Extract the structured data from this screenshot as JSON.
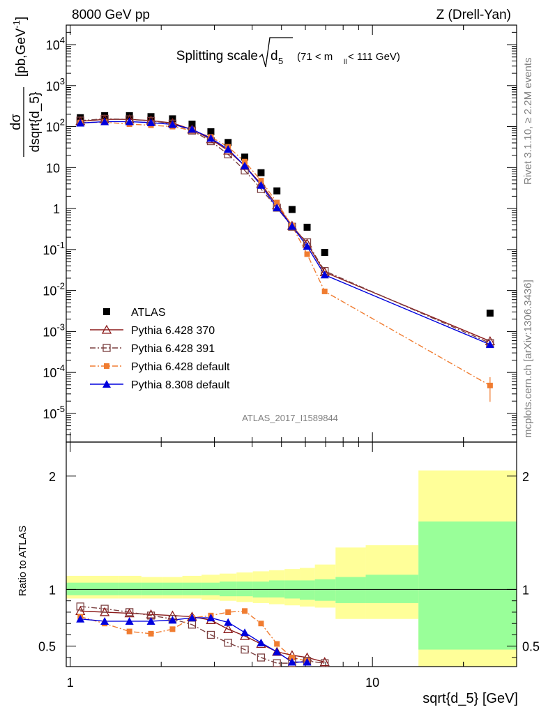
{
  "header": {
    "left": "8000 GeV pp",
    "right": "Z (Drell-Yan)"
  },
  "side": {
    "rivet": "Rivet 3.1.10, ≥ 2.2M events",
    "mcplots": "mcplots.cern.ch [arXiv:1306.3436]"
  },
  "chart_data": {
    "type": "scatter",
    "title_main": "Splitting scale",
    "title_var": "d",
    "title_sub": "5",
    "title_cut_open": "(71 < m",
    "title_cut_sub": "ll",
    "title_cut_close": " < 111 GeV)",
    "ylabel_num": "dσ",
    "ylabel_den": "dsqrt{d_5}",
    "ylabel_units": "[pb,GeV",
    "ylabel_units_exp": "-1",
    "ylabel_units_close": "]",
    "xlabel": "sqrt{d_5} [GeV]",
    "ratio_ylabel": "Ratio to ATLAS",
    "watermark": "ATLAS_2017_I1589844",
    "x_scale": "log",
    "y_scale": "log",
    "xlim": [
      0.97,
      30
    ],
    "ylim": [
      2e-06,
      30000
    ],
    "ratio_ylim": [
      0.32,
      2.3
    ],
    "x_ticks": [
      "1",
      "10"
    ],
    "y_ticks": [
      {
        "v": 10000,
        "base": "10",
        "exp": "4"
      },
      {
        "v": 1000,
        "base": "10",
        "exp": "3"
      },
      {
        "v": 100,
        "base": "10",
        "exp": "2"
      },
      {
        "v": 10,
        "base": "10",
        "exp": ""
      },
      {
        "v": 1,
        "base": "1",
        "exp": ""
      },
      {
        "v": 0.1,
        "base": "10",
        "exp": "-1"
      },
      {
        "v": 0.01,
        "base": "10",
        "exp": "-2"
      },
      {
        "v": 0.001,
        "base": "10",
        "exp": "-3"
      },
      {
        "v": 0.0001,
        "base": "10",
        "exp": "-4"
      },
      {
        "v": 1e-05,
        "base": "10",
        "exp": "-5"
      }
    ],
    "ratio_ticks": [
      "0.5",
      "1",
      "2"
    ],
    "bin_edges": [
      0.97,
      1.19,
      1.44,
      1.72,
      2.02,
      2.35,
      2.72,
      3.12,
      3.55,
      4.02,
      4.55,
      5.12,
      5.75,
      6.45,
      7.55,
      9.5,
      14.2,
      30
    ],
    "x": [
      1.08,
      1.3,
      1.57,
      1.85,
      2.18,
      2.53,
      2.92,
      3.33,
      3.78,
      4.28,
      4.83,
      5.42,
      6.08,
      6.95,
      8.4,
      11.6,
      24.5
    ],
    "series": [
      {
        "name": "ATLAS",
        "marker": "filled-square",
        "color": "#000000",
        "values": [
          165,
          185,
          185,
          175,
          155,
          115,
          75,
          41,
          18,
          7.5,
          2.7,
          0.95,
          0.35,
          0.085,
          0.0028
        ]
      },
      {
        "name": "Pythia 6.428 370",
        "marker": "open-triangle",
        "color": "#8b1a1a",
        "line": "solid",
        "values": [
          135,
          150,
          150,
          140,
          122,
          85,
          49,
          26,
          11,
          4.0,
          1.2,
          0.38,
          0.14,
          0.028,
          0.00058
        ]
      },
      {
        "name": "Pythia 6.428 391",
        "marker": "open-square",
        "color": "#7b4040",
        "line": "dash-dot",
        "values": [
          140,
          155,
          150,
          138,
          118,
          80,
          44,
          21,
          8.5,
          3.0,
          1.05,
          0.36,
          0.15,
          0.03,
          0.00052
        ]
      },
      {
        "name": "Pythia 6.428 default",
        "marker": "filled-square-small",
        "color": "#f07c30",
        "line": "dash-dot",
        "values": [
          125,
          128,
          115,
          108,
          100,
          80,
          56,
          32,
          14,
          4.8,
          1.4,
          0.38,
          0.077,
          0.0095,
          4.8e-05
        ]
      },
      {
        "name": "Pythia 8.308 default",
        "marker": "filled-triangle",
        "color": "#0000dd",
        "line": "solid",
        "values": [
          122,
          132,
          132,
          125,
          113,
          86,
          52,
          28,
          11,
          3.7,
          1.05,
          0.37,
          0.12,
          0.024,
          0.00048
        ]
      }
    ],
    "ratio_x": [
      1.08,
      1.3,
      1.57,
      1.85,
      2.18,
      2.53,
      2.92,
      3.33,
      3.78,
      4.28,
      4.83,
      5.42,
      6.08,
      6.95,
      8.4,
      11.6,
      24.5
    ],
    "ratio_series": [
      {
        "name": "Pythia 6.428 370",
        "values": [
          0.81,
          0.8,
          0.79,
          0.78,
          0.77,
          0.76,
          0.73,
          0.65,
          0.59,
          0.52,
          0.45,
          0.42,
          0.4,
          0.36
        ]
      },
      {
        "name": "Pythia 6.428 391",
        "values": [
          0.85,
          0.83,
          0.8,
          0.77,
          0.74,
          0.69,
          0.6,
          0.53,
          0.47,
          0.4,
          0.35,
          0.35,
          0.37,
          0.35
        ]
      },
      {
        "name": "Pythia 6.428 default",
        "values": [
          0.76,
          0.7,
          0.63,
          0.61,
          0.65,
          0.75,
          0.77,
          0.8,
          0.81,
          0.7,
          0.52,
          0.4,
          0.37
        ]
      },
      {
        "name": "Pythia 8.308 default",
        "values": [
          0.74,
          0.72,
          0.72,
          0.72,
          0.73,
          0.75,
          0.75,
          0.71,
          0.62,
          0.53,
          0.45,
          0.36,
          0.36
        ]
      }
    ],
    "band_inner": [
      [
        0.95,
        1.06
      ],
      [
        0.95,
        1.06
      ],
      [
        0.95,
        1.06
      ],
      [
        0.95,
        1.06
      ],
      [
        0.95,
        1.06
      ],
      [
        0.95,
        1.06
      ],
      [
        0.95,
        1.06
      ],
      [
        0.94,
        1.07
      ],
      [
        0.94,
        1.07
      ],
      [
        0.93,
        1.07
      ],
      [
        0.93,
        1.08
      ],
      [
        0.92,
        1.08
      ],
      [
        0.91,
        1.08
      ],
      [
        0.9,
        1.09
      ],
      [
        0.88,
        1.11
      ],
      [
        0.88,
        1.13
      ],
      [
        0.47,
        1.6
      ]
    ],
    "band_outer": [
      [
        0.92,
        1.12
      ],
      [
        0.92,
        1.12
      ],
      [
        0.92,
        1.12
      ],
      [
        0.92,
        1.11
      ],
      [
        0.92,
        1.11
      ],
      [
        0.92,
        1.12
      ],
      [
        0.91,
        1.13
      ],
      [
        0.9,
        1.14
      ],
      [
        0.89,
        1.15
      ],
      [
        0.88,
        1.16
      ],
      [
        0.87,
        1.17
      ],
      [
        0.86,
        1.18
      ],
      [
        0.85,
        1.19
      ],
      [
        0.84,
        1.22
      ],
      [
        0.74,
        1.37
      ],
      [
        0.74,
        1.39
      ],
      [
        0.32,
        2.05
      ]
    ],
    "band_colors": {
      "inner": "#99ff99",
      "outer": "#ffff99"
    },
    "legend_position": "bottom-left"
  }
}
